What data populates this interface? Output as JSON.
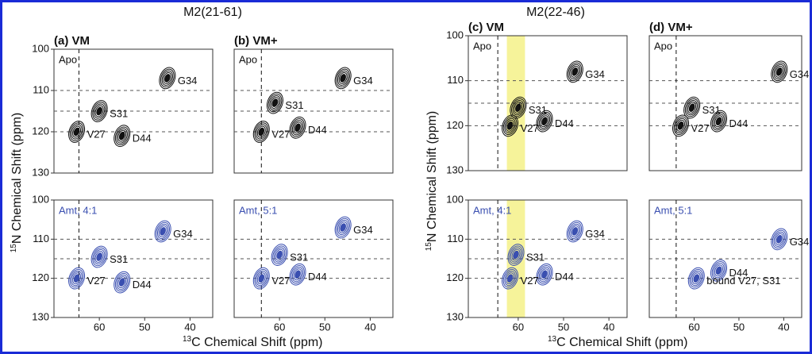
{
  "figure": {
    "groups": [
      {
        "title": "M2(21-61)",
        "x_label_sup": "13",
        "x_label": "C Chemical Shift (ppm)",
        "y_label_sup": "15",
        "y_label": "N Chemical Shift (ppm)"
      },
      {
        "title": "M2(22-46)",
        "x_label_sup": "13",
        "x_label": "C Chemical Shift (ppm)",
        "y_label_sup": "15",
        "y_label": "N Chemical Shift (ppm)"
      }
    ]
  },
  "chart_data": [
    {
      "type": "contour",
      "panel_label": "(a) VM",
      "condition": "Apo",
      "color": "#111111",
      "xlim": [
        70,
        35
      ],
      "ylim": [
        100,
        130
      ],
      "yticks": [
        100,
        110,
        120,
        130
      ],
      "hlines": [
        110,
        115,
        120
      ],
      "vline": 64.5,
      "peaks": [
        {
          "label": "G34",
          "x": 45,
          "y": 107
        },
        {
          "label": "S31",
          "x": 60,
          "y": 115
        },
        {
          "label": "D44",
          "x": 55,
          "y": 121
        },
        {
          "label": "V27",
          "x": 65,
          "y": 120
        }
      ]
    },
    {
      "type": "contour",
      "condition": "Amt, 4:1",
      "color": "#3a4fb0",
      "xlim": [
        70,
        35
      ],
      "ylim": [
        100,
        130
      ],
      "xticks": [
        60,
        50,
        40
      ],
      "yticks": [
        100,
        110,
        120,
        130
      ],
      "hlines": [
        110,
        115,
        120
      ],
      "vline": 64.5,
      "peaks": [
        {
          "label": "G34",
          "x": 46,
          "y": 108
        },
        {
          "label": "S31",
          "x": 60,
          "y": 114.5
        },
        {
          "label": "D44",
          "x": 55,
          "y": 121
        },
        {
          "label": "V27",
          "x": 65,
          "y": 120
        }
      ]
    },
    {
      "type": "contour",
      "panel_label": "(b) VM+",
      "condition": "Apo",
      "color": "#111111",
      "xlim": [
        70,
        35
      ],
      "ylim": [
        100,
        130
      ],
      "hlines": [
        110,
        115,
        120
      ],
      "vline": 64,
      "peaks": [
        {
          "label": "G34",
          "x": 46,
          "y": 107
        },
        {
          "label": "S31",
          "x": 61,
          "y": 113
        },
        {
          "label": "D44",
          "x": 56,
          "y": 119
        },
        {
          "label": "V27",
          "x": 64,
          "y": 120
        }
      ]
    },
    {
      "type": "contour",
      "condition": "Amt, 5:1",
      "color": "#3a4fb0",
      "xlim": [
        70,
        35
      ],
      "ylim": [
        100,
        130
      ],
      "xticks": [
        60,
        50,
        40
      ],
      "hlines": [
        110,
        115,
        120
      ],
      "vline": 64,
      "peaks": [
        {
          "label": "G34",
          "x": 46,
          "y": 107
        },
        {
          "label": "S31",
          "x": 60,
          "y": 114
        },
        {
          "label": "D44",
          "x": 56,
          "y": 119
        },
        {
          "label": "V27",
          "x": 64,
          "y": 120
        }
      ]
    },
    {
      "type": "contour",
      "panel_label": "(c) VM",
      "condition": "Apo",
      "color": "#111111",
      "xlim": [
        71,
        36
      ],
      "ylim": [
        100,
        130
      ],
      "yticks": [
        100,
        110,
        120,
        130
      ],
      "hlines": [
        110,
        115,
        120
      ],
      "vline": 64.5,
      "highlight": [
        62.5,
        58.5
      ],
      "peaks": [
        {
          "label": "G34",
          "x": 47.5,
          "y": 108
        },
        {
          "label": "S31",
          "x": 60,
          "y": 116
        },
        {
          "label": "D44",
          "x": 54.2,
          "y": 119
        },
        {
          "label": "V27",
          "x": 61.8,
          "y": 120
        }
      ]
    },
    {
      "type": "contour",
      "condition": "Amt, 4:1",
      "color": "#3a4fb0",
      "xlim": [
        71,
        36
      ],
      "ylim": [
        100,
        130
      ],
      "xticks": [
        60,
        50,
        40
      ],
      "yticks": [
        100,
        110,
        120,
        130
      ],
      "hlines": [
        110,
        115,
        120
      ],
      "vline": 64.5,
      "highlight": [
        62.5,
        58.5
      ],
      "peaks": [
        {
          "label": "G34",
          "x": 47.5,
          "y": 108
        },
        {
          "label": "S31",
          "x": 60.5,
          "y": 114
        },
        {
          "label": "D44",
          "x": 54.2,
          "y": 119
        },
        {
          "label": "V27",
          "x": 61.8,
          "y": 120
        }
      ]
    },
    {
      "type": "contour",
      "panel_label": "(d) VM+",
      "condition": "Apo",
      "color": "#111111",
      "xlim": [
        70,
        36
      ],
      "ylim": [
        100,
        130
      ],
      "hlines": [
        110,
        115,
        120
      ],
      "vline": 64,
      "peaks": [
        {
          "label": "G34",
          "x": 41,
          "y": 108
        },
        {
          "label": "S31",
          "x": 60.5,
          "y": 116
        },
        {
          "label": "D44",
          "x": 54.5,
          "y": 119
        },
        {
          "label": "V27",
          "x": 63,
          "y": 120
        }
      ]
    },
    {
      "type": "contour",
      "condition": "Amt, 5:1",
      "color": "#3a4fb0",
      "xlim": [
        70,
        36
      ],
      "ylim": [
        100,
        130
      ],
      "xticks": [
        60,
        50,
        40
      ],
      "hlines": [
        110,
        115,
        120
      ],
      "vline": 64,
      "peaks": [
        {
          "label": "G34",
          "x": 41,
          "y": 110
        },
        {
          "label": "D44",
          "x": 54.5,
          "y": 118
        },
        {
          "label": "bound V27, S31",
          "x": 59.5,
          "y": 120
        }
      ]
    }
  ]
}
